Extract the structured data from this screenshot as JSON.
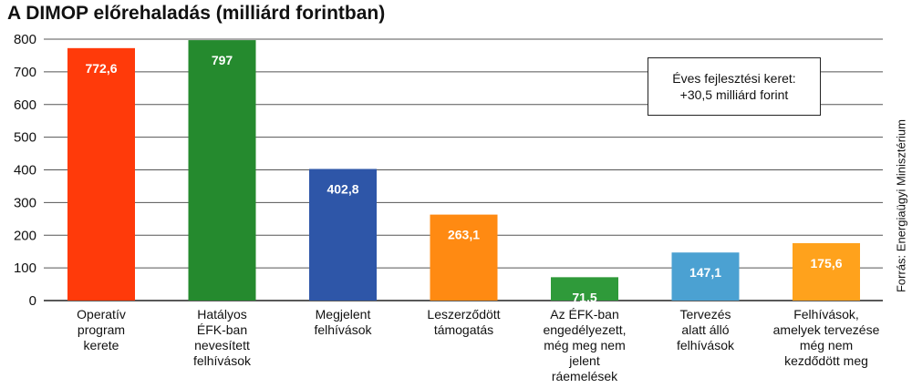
{
  "chart_data": {
    "type": "bar",
    "title": "A DIMOP előrehaladás (milliárd forintban)",
    "xlabel": "",
    "ylabel": "",
    "ylim": [
      0,
      800
    ],
    "yticks": [
      0,
      100,
      200,
      300,
      400,
      500,
      600,
      700,
      800
    ],
    "grid": true,
    "categories": [
      "Operatív program kerete",
      "Hatályos ÉFK-ban nevesített felhívások",
      "Megjelent felhívások",
      "Leszerződött támogatás",
      "Az ÉFK-ban engedélyezett, még meg nem jelent ráemelések",
      "Tervezés alatt álló felhívások",
      "Felhívások, amelyek tervezése még nem kezdődött meg"
    ],
    "category_lines": [
      [
        "Operatív",
        "program",
        "kerete"
      ],
      [
        "Hatályos",
        "ÉFK-ban",
        "nevesített",
        "felhívások"
      ],
      [
        "Megjelent",
        "felhívások"
      ],
      [
        "Leszerződött",
        "támogatás"
      ],
      [
        "Az ÉFK-ban",
        "engedélyezett,",
        "még meg nem",
        "jelent",
        "ráemelések"
      ],
      [
        "Tervezés",
        "alatt álló",
        "felhívások"
      ],
      [
        "Felhívások,",
        "amelyek tervezése",
        "még nem",
        "kezdődött meg"
      ]
    ],
    "values": [
      772.6,
      797,
      402.8,
      263.1,
      71.5,
      147.1,
      175.6
    ],
    "value_labels": [
      "772,6",
      "797",
      "402,8",
      "263,1",
      "71,5",
      "147,1",
      "175,6"
    ],
    "colors": [
      "#ff3a0a",
      "#258a2e",
      "#2e56a8",
      "#ff8a12",
      "#2f9a3a",
      "#4ba1d2",
      "#ffa21c"
    ],
    "annotation": {
      "line1": "Éves fejlesztési keret:",
      "line2": "+30,5 milliárd forint"
    },
    "source": "Forrás: Energiaügyi Minisztérium"
  }
}
